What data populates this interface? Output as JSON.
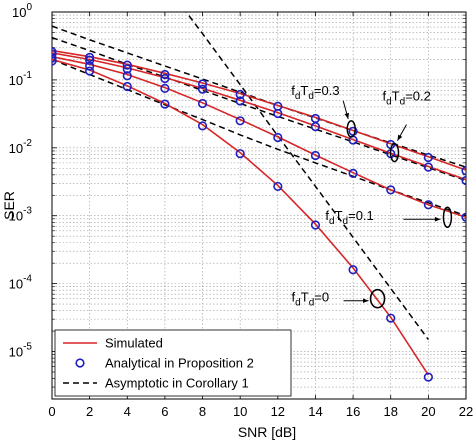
{
  "chart_data": {
    "type": "line",
    "xlabel": "SNR [dB]",
    "ylabel": "SER",
    "xlim": [
      0,
      22
    ],
    "ylim": [
      2e-06,
      1
    ],
    "yscale": "log",
    "grid": true,
    "x_ticks": [
      0,
      2,
      4,
      6,
      8,
      10,
      12,
      14,
      16,
      18,
      20,
      22
    ],
    "y_ticks": [
      {
        "value": 1,
        "base": "10",
        "exp": "0"
      },
      {
        "value": 0.1,
        "base": "10",
        "exp": "-1"
      },
      {
        "value": 0.01,
        "base": "10",
        "exp": "-2"
      },
      {
        "value": 0.001,
        "base": "10",
        "exp": "-3"
      },
      {
        "value": 0.0001,
        "base": "10",
        "exp": "-4"
      },
      {
        "value": 1e-05,
        "base": "10",
        "exp": "-5"
      }
    ],
    "legend_position": "bottom-left",
    "legend": [
      {
        "label": "Simulated",
        "style": "solid",
        "color": "#d62728"
      },
      {
        "label": "Analytical in Proposition 2",
        "style": "markers",
        "color": "#1f1fbf"
      },
      {
        "label": "Asymptotic in Corollary 1",
        "style": "dashed",
        "color": "#000000"
      }
    ],
    "series": [
      {
        "case": "fdTd=0.3",
        "x": [
          0,
          2,
          4,
          6,
          8,
          10,
          12,
          14,
          16,
          18,
          20,
          22
        ],
        "simulated": [
          0.27,
          0.22,
          0.17,
          0.125,
          0.09,
          0.063,
          0.042,
          0.028,
          0.018,
          0.0115,
          0.0074,
          0.0047
        ],
        "analytical": [
          0.26,
          0.215,
          0.165,
          0.12,
          0.087,
          0.061,
          0.041,
          0.027,
          0.0175,
          0.0112,
          0.0072,
          0.0046
        ],
        "asymptotic": [
          0.62,
          0.39,
          0.25,
          0.16,
          0.103,
          0.066,
          0.042,
          0.0275,
          0.018,
          0.0118,
          0.0078,
          0.0052
        ]
      },
      {
        "case": "fdTd=0.2",
        "x": [
          0,
          2,
          4,
          6,
          8,
          10,
          12,
          14,
          16,
          18,
          20,
          22
        ],
        "simulated": [
          0.25,
          0.2,
          0.15,
          0.108,
          0.075,
          0.05,
          0.033,
          0.021,
          0.0132,
          0.0083,
          0.0053,
          0.0034
        ],
        "analytical": [
          0.24,
          0.195,
          0.145,
          0.105,
          0.073,
          0.049,
          0.032,
          0.0205,
          0.013,
          0.0082,
          0.0052,
          0.0033
        ],
        "asymptotic": [
          0.42,
          0.27,
          0.17,
          0.11,
          0.07,
          0.045,
          0.029,
          0.0188,
          0.0122,
          0.0079,
          0.0051,
          0.0033
        ]
      },
      {
        "case": "fdTd=0.1",
        "x": [
          0,
          2,
          4,
          6,
          8,
          10,
          12,
          14,
          16,
          18,
          20,
          22
        ],
        "simulated": [
          0.22,
          0.17,
          0.12,
          0.077,
          0.046,
          0.026,
          0.0145,
          0.0078,
          0.0043,
          0.0024,
          0.00145,
          0.00095
        ],
        "analytical": [
          0.21,
          0.16,
          0.115,
          0.075,
          0.045,
          0.025,
          0.0142,
          0.0077,
          0.0042,
          0.0024,
          0.00145,
          0.00095
        ],
        "asymptotic": [
          0.2,
          0.12,
          0.072,
          0.043,
          0.026,
          0.0155,
          0.0095,
          0.006,
          0.0038,
          0.0024,
          0.00155,
          0.001
        ]
      },
      {
        "case": "fdTd=0",
        "x": [
          0,
          2,
          4,
          6,
          8,
          10,
          12,
          14,
          16,
          18,
          20
        ],
        "simulated": [
          0.2,
          0.14,
          0.082,
          0.045,
          0.022,
          0.0085,
          0.0028,
          0.00075,
          0.00017,
          3.2e-05,
          4.5e-06
        ],
        "analytical": [
          0.19,
          0.135,
          0.08,
          0.044,
          0.021,
          0.0082,
          0.0027,
          0.00073,
          0.00016,
          3.1e-05,
          4.2e-06
        ],
        "asymptotic_x": [
          6,
          8,
          10,
          12,
          14,
          16,
          18,
          20
        ],
        "asymptotic": [
          2.6,
          0.48,
          0.085,
          0.015,
          0.0027,
          0.00048,
          8.5e-05,
          1.5e-05
        ]
      }
    ],
    "annotations": [
      {
        "id": "fd03",
        "parts": [
          "f",
          "d",
          "T",
          "d",
          "=0.3"
        ],
        "anchor_x": 15.9,
        "anchor_y": 0.019
      },
      {
        "id": "fd02",
        "parts": [
          "f",
          "d",
          "T",
          "d",
          "=0.2"
        ],
        "anchor_x": 18.2,
        "anchor_y": 0.0085
      },
      {
        "id": "fd01",
        "parts": [
          "f",
          "d",
          "T",
          "d",
          "=0.1"
        ],
        "anchor_x": 20.8,
        "anchor_y": 0.00095
      },
      {
        "id": "fd0",
        "parts": [
          "f",
          "d",
          "T",
          "d",
          "=0"
        ],
        "anchor_x": 17.3,
        "anchor_y": 6e-05
      }
    ]
  }
}
